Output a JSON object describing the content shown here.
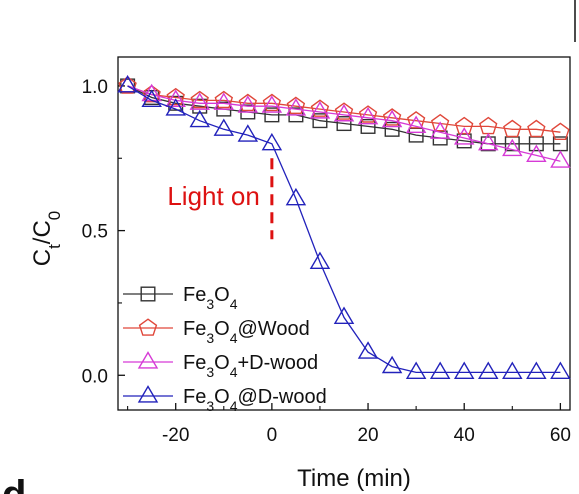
{
  "chart_data": {
    "type": "line",
    "xlabel": "Time (min)",
    "ylabel": "C",
    "ylabel_sub_t": "t",
    "ylabel_slash": "/C",
    "ylabel_sub_0": "0",
    "xlim": [
      -32,
      62
    ],
    "ylim": [
      -0.12,
      1.1
    ],
    "xticks": [
      -20,
      0,
      20,
      40,
      60
    ],
    "xtick_labels": [
      "-20",
      "0",
      "20",
      "40",
      "60"
    ],
    "yticks": [
      0.0,
      0.5,
      1.0
    ],
    "ytick_labels": [
      "0.0",
      "0.5",
      "1.0"
    ],
    "grid": false,
    "legend_position": "bottom-left",
    "annotation": {
      "text": "Light on",
      "x": 0,
      "color": "#dd1111"
    },
    "panel_letter": "d",
    "series": [
      {
        "name": "Fe3O4",
        "legend_parts": [
          [
            "Fe",
            ""
          ],
          [
            "3",
            "sub"
          ],
          [
            "O",
            ""
          ],
          [
            "4",
            "sub"
          ]
        ],
        "marker": "square",
        "color": "#333333",
        "x": [
          -30,
          -25,
          -20,
          -15,
          -10,
          -5,
          0,
          5,
          10,
          15,
          20,
          25,
          30,
          35,
          40,
          45,
          50,
          55,
          60
        ],
        "y": [
          1.0,
          0.96,
          0.94,
          0.93,
          0.92,
          0.91,
          0.9,
          0.9,
          0.88,
          0.87,
          0.86,
          0.85,
          0.83,
          0.82,
          0.81,
          0.8,
          0.8,
          0.8,
          0.8
        ]
      },
      {
        "name": "Fe3O4@Wood",
        "legend_parts": [
          [
            "Fe",
            ""
          ],
          [
            "3",
            "sub"
          ],
          [
            "O",
            ""
          ],
          [
            "4",
            "sub"
          ],
          [
            "@Wood",
            ""
          ]
        ],
        "marker": "pentagon",
        "color": "#e0473a",
        "x": [
          -30,
          -25,
          -20,
          -15,
          -10,
          -5,
          0,
          5,
          10,
          15,
          20,
          25,
          30,
          35,
          40,
          45,
          50,
          55,
          60
        ],
        "y": [
          1.0,
          0.97,
          0.96,
          0.95,
          0.95,
          0.94,
          0.94,
          0.93,
          0.92,
          0.91,
          0.9,
          0.89,
          0.88,
          0.87,
          0.86,
          0.86,
          0.85,
          0.85,
          0.84
        ]
      },
      {
        "name": "Fe3O4+D-wood",
        "legend_parts": [
          [
            "Fe",
            ""
          ],
          [
            "3",
            "sub"
          ],
          [
            "O",
            ""
          ],
          [
            "4",
            "sub"
          ],
          [
            "+D-wood",
            ""
          ]
        ],
        "marker": "triangle",
        "color": "#d63ad6",
        "x": [
          -30,
          -25,
          -20,
          -15,
          -10,
          -5,
          0,
          5,
          10,
          15,
          20,
          25,
          30,
          35,
          40,
          45,
          50,
          55,
          60
        ],
        "y": [
          1.0,
          0.97,
          0.95,
          0.94,
          0.94,
          0.93,
          0.93,
          0.92,
          0.91,
          0.9,
          0.89,
          0.88,
          0.86,
          0.84,
          0.82,
          0.8,
          0.78,
          0.76,
          0.74
        ]
      },
      {
        "name": "Fe3O4@D-wood",
        "legend_parts": [
          [
            "Fe",
            ""
          ],
          [
            "3",
            "sub"
          ],
          [
            "O",
            ""
          ],
          [
            "4",
            "sub"
          ],
          [
            "@D-wood",
            ""
          ]
        ],
        "marker": "triangle",
        "color": "#2222bb",
        "x": [
          -30,
          -25,
          -20,
          -15,
          -10,
          -5,
          0,
          5,
          10,
          15,
          20,
          25,
          30,
          35,
          40,
          45,
          50,
          55,
          60
        ],
        "y": [
          1.0,
          0.95,
          0.92,
          0.88,
          0.85,
          0.83,
          0.8,
          0.61,
          0.39,
          0.2,
          0.08,
          0.03,
          0.01,
          0.01,
          0.01,
          0.01,
          0.01,
          0.01,
          0.01
        ]
      }
    ]
  }
}
